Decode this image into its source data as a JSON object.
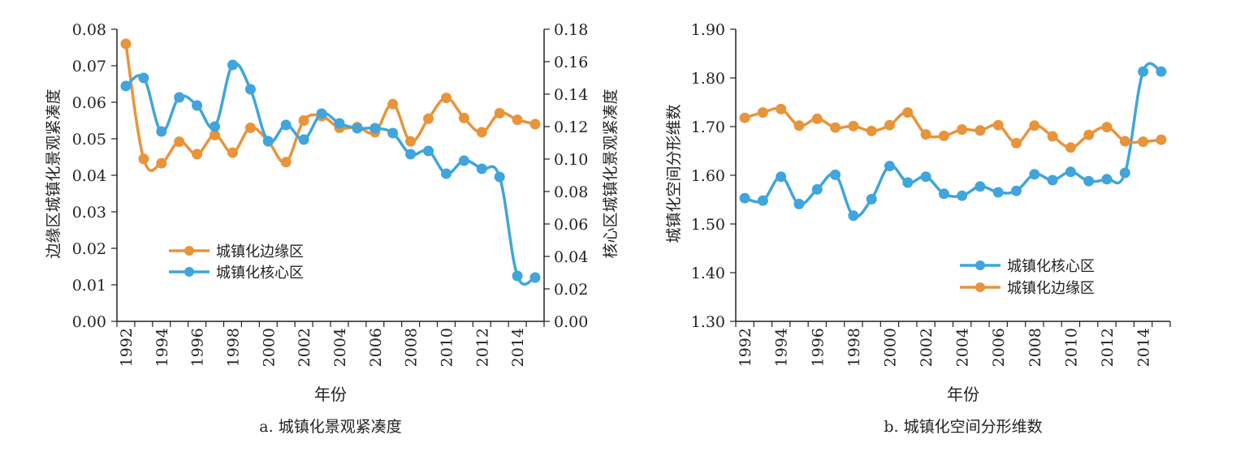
{
  "colors": {
    "edge": "#E8943A",
    "core": "#3FA5DC"
  },
  "chart_data": [
    {
      "type": "line",
      "caption": "a. 城镇化景观紧凑度",
      "xlabel": "年份",
      "x": [
        1992,
        1993,
        1994,
        1995,
        1996,
        1997,
        1998,
        1999,
        2000,
        2001,
        2002,
        2003,
        2004,
        2005,
        2006,
        2007,
        2008,
        2009,
        2010,
        2011,
        2012,
        2013,
        2014,
        2015
      ],
      "x_tick_labels": [
        "1992",
        "1994",
        "1996",
        "1998",
        "2000",
        "2002",
        "2004",
        "2006",
        "2008",
        "2010",
        "2012",
        "2014"
      ],
      "ylabel_left": "边缘区城镇化景观紧凑度",
      "ylabel_right": "核心区城镇化景观紧凑度",
      "ylim_left": [
        0,
        0.08
      ],
      "ylim_right": [
        0,
        0.18
      ],
      "y_ticks_left": [
        "0.00",
        "0.01",
        "0.02",
        "0.03",
        "0.04",
        "0.05",
        "0.06",
        "0.07",
        "0.08"
      ],
      "y_ticks_right": [
        "0.00",
        "0.02",
        "0.04",
        "0.06",
        "0.08",
        "0.10",
        "0.12",
        "0.14",
        "0.16",
        "0.18"
      ],
      "legend": [
        "城镇化边缘区",
        "城镇化核心区"
      ],
      "series": [
        {
          "name": "城镇化边缘区",
          "axis": "left",
          "color": "#E8943A",
          "values": [
            0.076,
            0.0445,
            0.0433,
            0.0492,
            0.0458,
            0.051,
            0.0462,
            0.053,
            0.0493,
            0.0436,
            0.055,
            0.0562,
            0.053,
            0.0532,
            0.0518,
            0.0595,
            0.0493,
            0.0555,
            0.0612,
            0.0557,
            0.0518,
            0.057,
            0.0552,
            0.054
          ]
        },
        {
          "name": "城镇化核心区",
          "axis": "right",
          "color": "#3FA5DC",
          "values": [
            0.145,
            0.15,
            0.117,
            0.138,
            0.133,
            0.12,
            0.158,
            0.143,
            0.111,
            0.121,
            0.112,
            0.128,
            0.122,
            0.119,
            0.119,
            0.116,
            0.103,
            0.105,
            0.091,
            0.099,
            0.094,
            0.089,
            0.028,
            0.027
          ]
        }
      ]
    },
    {
      "type": "line",
      "caption": "b. 城镇化空间分形维数",
      "xlabel": "年份",
      "x": [
        1992,
        1993,
        1994,
        1995,
        1996,
        1997,
        1998,
        1999,
        2000,
        2001,
        2002,
        2003,
        2004,
        2005,
        2006,
        2007,
        2008,
        2009,
        2010,
        2011,
        2012,
        2013,
        2014,
        2015
      ],
      "x_tick_labels": [
        "1992",
        "1994",
        "1996",
        "1998",
        "2000",
        "2002",
        "2004",
        "2006",
        "2008",
        "2010",
        "2012",
        "2014"
      ],
      "ylabel": "城镇化空间分形维数",
      "ylim": [
        1.3,
        1.9
      ],
      "y_ticks": [
        "1.30",
        "1.40",
        "1.50",
        "1.60",
        "1.70",
        "1.80",
        "1.90"
      ],
      "legend": [
        "城镇化核心区",
        "城镇化边缘区"
      ],
      "series": [
        {
          "name": "城镇化核心区",
          "color": "#3FA5DC",
          "values": [
            1.553,
            1.548,
            1.597,
            1.541,
            1.571,
            1.601,
            1.517,
            1.551,
            1.619,
            1.585,
            1.597,
            1.562,
            1.558,
            1.577,
            1.565,
            1.568,
            1.602,
            1.59,
            1.607,
            1.588,
            1.592,
            1.605,
            1.813,
            1.813
          ]
        },
        {
          "name": "城镇化边缘区",
          "color": "#E8943A",
          "values": [
            1.718,
            1.729,
            1.736,
            1.702,
            1.716,
            1.698,
            1.701,
            1.691,
            1.703,
            1.729,
            1.684,
            1.681,
            1.694,
            1.692,
            1.703,
            1.666,
            1.702,
            1.68,
            1.657,
            1.683,
            1.699,
            1.67,
            1.669,
            1.673
          ]
        }
      ]
    }
  ]
}
